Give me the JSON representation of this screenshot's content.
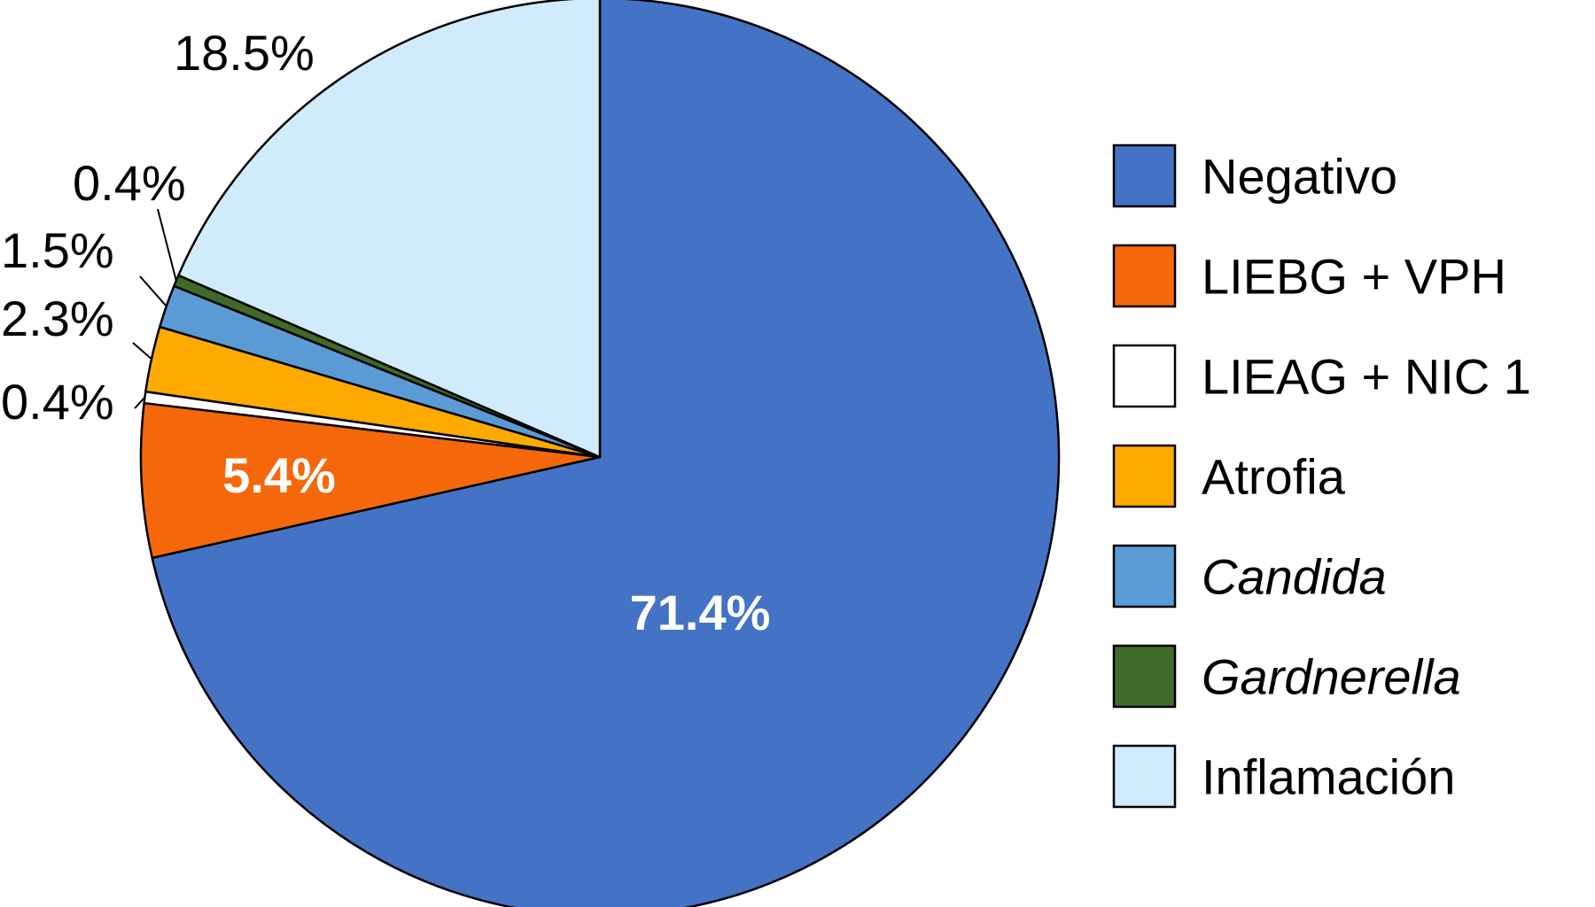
{
  "chart_data": {
    "type": "pie",
    "title": "",
    "slices": [
      {
        "label": "Negativo",
        "value": 71.4,
        "display": "71.4%",
        "color": "#4472C4",
        "italic": false
      },
      {
        "label": "LIEBG + VPH",
        "value": 5.4,
        "display": "5.4%",
        "color": "#F4680B",
        "italic": false
      },
      {
        "label": "LIEAG + NIC 1",
        "value": 0.4,
        "display": "0.4%",
        "color": "#FFFFFF",
        "italic": false
      },
      {
        "label": "Atrofia",
        "value": 2.3,
        "display": "2.3%",
        "color": "#FFAA00",
        "italic": false
      },
      {
        "label": "Candida",
        "value": 1.5,
        "display": "1.5%",
        "color": "#5B9BD5",
        "italic": true
      },
      {
        "label": "Gardnerella",
        "value": 0.4,
        "display": "0.4%",
        "color": "#3F6A2A",
        "italic": true
      },
      {
        "label": "Inflamación",
        "value": 18.5,
        "display": "18.5%",
        "color": "#D0EBFB",
        "italic": false
      }
    ],
    "start": "12 o'clock",
    "direction": "clockwise",
    "legend_position": "right"
  }
}
